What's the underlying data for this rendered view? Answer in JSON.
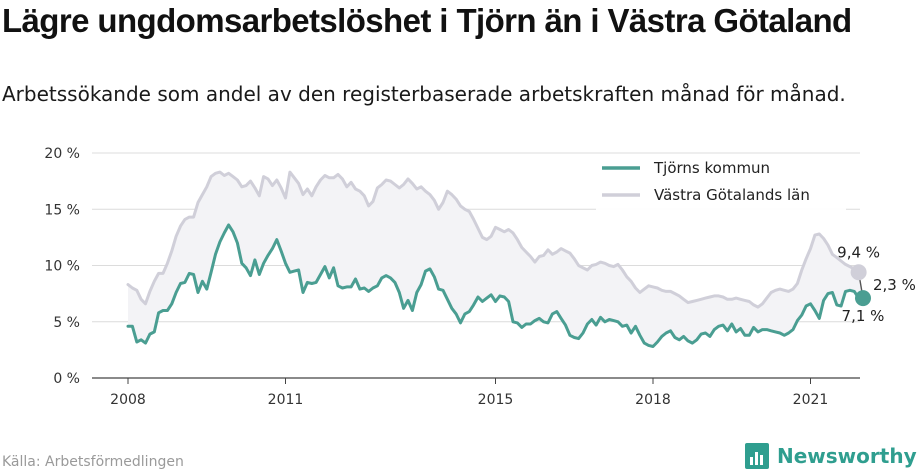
{
  "header": {
    "title": "Lägre ungdomsarbetslöshet i Tjörn än i Västra Götaland",
    "subtitle": "Arbetssökande som andel av den registerbaserade arbetskraften månad för månad."
  },
  "footer": {
    "source": "Källa: Arbetsförmedlingen",
    "brand": "Newsworthy",
    "brand_icon": "newsworthy-logo-icon",
    "brand_color": "#2f9e8f"
  },
  "chart_data": {
    "type": "line",
    "x_start": "2008-01",
    "x_frequency": "monthly",
    "x_ticks": [
      "2008",
      "2011",
      "2015",
      "2018",
      "2021"
    ],
    "y_ticks": [
      "0 %",
      "5 %",
      "10 %",
      "15 %",
      "20 %"
    ],
    "ylim": [
      0,
      20
    ],
    "y_unit": "%",
    "grid": "horizontal",
    "legend_position": "top-right",
    "series": [
      {
        "name": "Tjörns kommun",
        "color": "#4a9e92",
        "values": [
          4.6,
          4.6,
          3.2,
          3.4,
          3.1,
          3.9,
          4.1,
          5.8,
          6.0,
          6.0,
          6.6,
          7.6,
          8.4,
          8.5,
          9.3,
          9.2,
          7.6,
          8.6,
          7.9,
          9.4,
          11.0,
          12.1,
          12.9,
          13.6,
          13.0,
          12.0,
          10.2,
          9.8,
          9.1,
          10.5,
          9.2,
          10.2,
          10.9,
          11.5,
          12.3,
          11.3,
          10.2,
          9.4,
          9.5,
          9.6,
          7.6,
          8.5,
          8.4,
          8.5,
          9.2,
          9.9,
          8.9,
          9.8,
          8.2,
          8.0,
          8.1,
          8.1,
          8.8,
          7.9,
          8.0,
          7.7,
          8.0,
          8.2,
          8.9,
          9.1,
          8.9,
          8.5,
          7.6,
          6.2,
          6.9,
          6.0,
          7.6,
          8.3,
          9.5,
          9.7,
          9.0,
          7.9,
          7.8,
          7.0,
          6.2,
          5.7,
          4.9,
          5.7,
          5.9,
          6.5,
          7.2,
          6.8,
          7.1,
          7.4,
          6.8,
          7.3,
          7.2,
          6.8,
          5.0,
          4.9,
          4.5,
          4.8,
          4.8,
          5.1,
          5.3,
          5.0,
          4.9,
          5.7,
          5.9,
          5.3,
          4.7,
          3.8,
          3.6,
          3.5,
          4.0,
          4.8,
          5.2,
          4.7,
          5.4,
          5.0,
          5.2,
          5.1,
          5.0,
          4.6,
          4.7,
          4.0,
          4.6,
          3.8,
          3.1,
          2.9,
          2.8,
          3.2,
          3.7,
          4.0,
          4.2,
          3.6,
          3.4,
          3.7,
          3.3,
          3.1,
          3.4,
          3.9,
          4.0,
          3.7,
          4.3,
          4.6,
          4.7,
          4.2,
          4.8,
          4.1,
          4.4,
          3.8,
          3.8,
          4.5,
          4.1,
          4.3,
          4.3,
          4.2,
          4.1,
          4.0,
          3.8,
          4.0,
          4.3,
          5.1,
          5.6,
          6.4,
          6.6,
          6.0,
          5.3,
          6.9,
          7.5,
          7.6,
          6.5,
          6.4,
          7.7,
          7.8,
          7.7,
          7.1,
          7.1
        ]
      },
      {
        "name": "Västra Götalands län",
        "color": "#d0cfd9",
        "values": [
          8.3,
          8.0,
          7.8,
          7.0,
          6.6,
          7.7,
          8.6,
          9.3,
          9.3,
          10.2,
          11.3,
          12.6,
          13.5,
          14.1,
          14.3,
          14.3,
          15.6,
          16.3,
          17.0,
          17.9,
          18.2,
          18.3,
          18.0,
          18.2,
          17.9,
          17.6,
          17.0,
          17.1,
          17.5,
          16.9,
          16.2,
          17.9,
          17.7,
          17.1,
          17.6,
          16.9,
          16.0,
          18.3,
          17.8,
          17.3,
          16.3,
          16.8,
          16.2,
          17.0,
          17.6,
          18.0,
          17.8,
          17.8,
          18.1,
          17.7,
          17.0,
          17.4,
          16.8,
          16.6,
          16.2,
          15.3,
          15.7,
          16.9,
          17.2,
          17.6,
          17.5,
          17.2,
          16.9,
          17.2,
          17.7,
          17.3,
          16.8,
          17.0,
          16.6,
          16.3,
          15.8,
          15.0,
          15.6,
          16.6,
          16.3,
          15.9,
          15.3,
          15.0,
          14.8,
          14.1,
          13.3,
          12.5,
          12.3,
          12.6,
          13.4,
          13.2,
          13.0,
          13.2,
          12.9,
          12.3,
          11.6,
          11.2,
          10.8,
          10.3,
          10.8,
          10.9,
          11.4,
          11.0,
          11.2,
          11.5,
          11.3,
          11.1,
          10.6,
          10.0,
          9.8,
          9.6,
          10.0,
          10.1,
          10.3,
          10.2,
          10.0,
          9.9,
          10.1,
          9.6,
          9.0,
          8.6,
          8.0,
          7.6,
          7.9,
          8.2,
          8.1,
          8.0,
          7.8,
          7.7,
          7.7,
          7.5,
          7.3,
          7.0,
          6.7,
          6.8,
          6.9,
          7.0,
          7.1,
          7.2,
          7.3,
          7.3,
          7.2,
          7.0,
          7.0,
          7.1,
          7.0,
          6.9,
          6.8,
          6.5,
          6.3,
          6.6,
          7.1,
          7.6,
          7.8,
          7.9,
          7.8,
          7.7,
          7.9,
          8.4,
          9.6,
          10.6,
          11.5,
          12.7,
          12.8,
          12.4,
          11.8,
          11.0,
          10.7,
          10.4,
          10.1,
          9.9,
          9.7,
          9.4
        ]
      }
    ],
    "annotations": {
      "last_tjorn": "7,1 %",
      "last_vg": "9,4 %",
      "difference": "2,3 %"
    }
  }
}
